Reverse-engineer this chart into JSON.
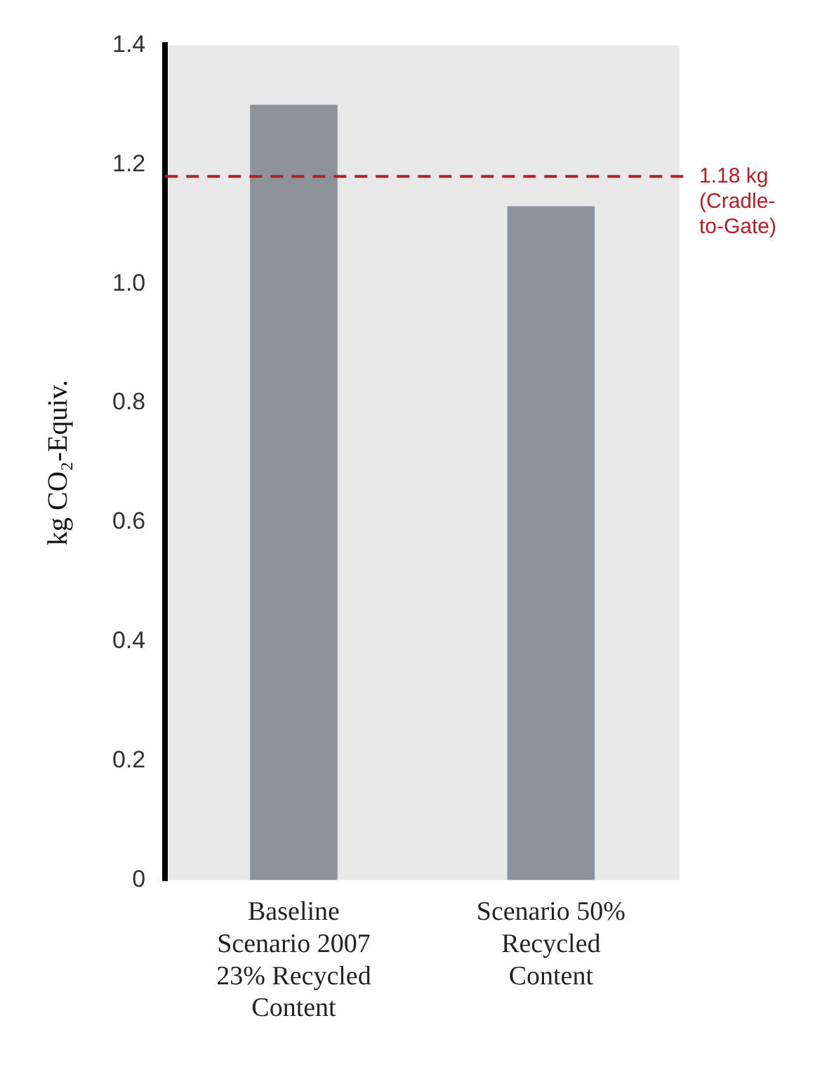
{
  "chart_data": {
    "type": "bar",
    "ylabel": "kg CO₂-Equiv.",
    "categories": [
      "Baseline Scenario 2007 23% Recycled Content",
      "Scenario 50% Recycled Content"
    ],
    "values": [
      1.3,
      1.13
    ],
    "color": "#8e9399",
    "ylim": [
      0,
      1.4
    ],
    "yticks": [
      0,
      0.2,
      0.4,
      0.6,
      0.8,
      {
        "value": 1,
        "label": "1.0"
      },
      1.2,
      1.4
    ],
    "grid": false,
    "legend": false,
    "ref_lines": [
      {
        "axis": "y",
        "value": 1.18,
        "label": "1.18 kg (Cradle-to-Gate)",
        "color": "#b0202a",
        "line_style": "dashed"
      }
    ]
  }
}
